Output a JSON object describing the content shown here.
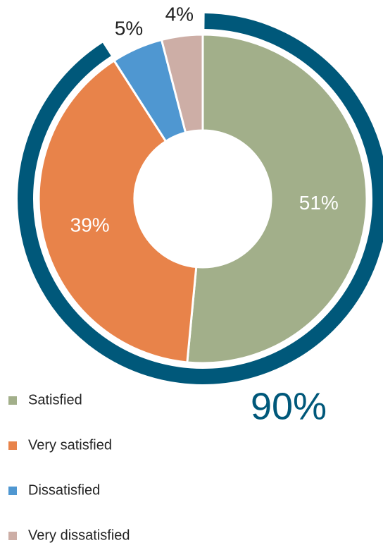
{
  "chart_data": {
    "type": "donut",
    "categories": [
      "Satisfied",
      "Very satisfied",
      "Dissatisfied",
      "Very dissatisfied"
    ],
    "values": [
      51,
      39,
      5,
      4
    ],
    "value_labels": [
      "51%",
      "39%",
      "5%",
      "4%"
    ],
    "colors": [
      "#a2af8a",
      "#e8834a",
      "#4f97d1",
      "#cdaea6"
    ],
    "highlight": {
      "value": 90,
      "label": "90%",
      "color": "#00587a"
    },
    "legend": "bottom-left"
  }
}
